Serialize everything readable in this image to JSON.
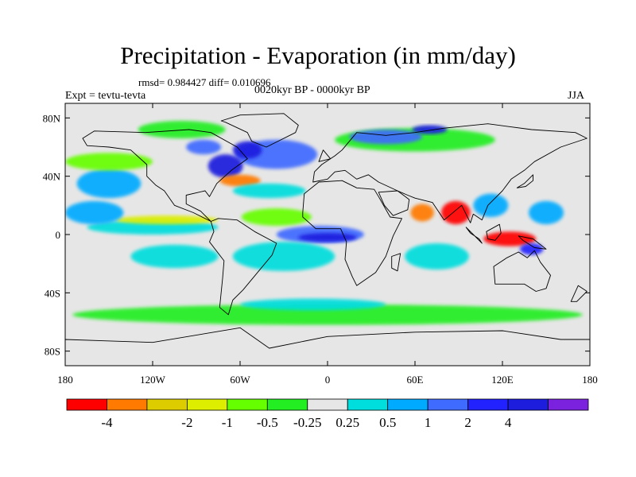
{
  "figure": {
    "title": "Precipitation - Evaporation (in mm/day)",
    "stats": "rmsd= 0.984427 diff= 0.010696",
    "experiment": "Expt = tevtu-tevta",
    "period": "0020kyr BP - 0000kyr BP",
    "season": "JJA"
  },
  "map": {
    "projection": "cylindrical-equidistant",
    "lon_range": [
      -180,
      180
    ],
    "lat_range": [
      -90,
      90
    ],
    "lon_ticks": [
      {
        "lon": -180,
        "label": "180"
      },
      {
        "lon": -120,
        "label": "120W"
      },
      {
        "lon": -60,
        "label": "60W"
      },
      {
        "lon": 0,
        "label": "0"
      },
      {
        "lon": 60,
        "label": "60E"
      },
      {
        "lon": 120,
        "label": "120E"
      },
      {
        "lon": 180,
        "label": "180"
      }
    ],
    "lat_ticks": [
      {
        "lat": 80,
        "label": "80N"
      },
      {
        "lat": 40,
        "label": "40N"
      },
      {
        "lat": 0,
        "label": "0"
      },
      {
        "lat": -40,
        "label": "40S"
      },
      {
        "lat": -80,
        "label": "80S"
      }
    ],
    "background_class": "-0.25 to 0.25",
    "features": [
      {
        "name": "north-atlantic-moistening",
        "lon": -35,
        "lat": 55,
        "rx": 28,
        "ry": 10,
        "color": "#3f6bff"
      },
      {
        "name": "nw-atlantic-wet",
        "lon": -70,
        "lat": 47,
        "rx": 12,
        "ry": 8,
        "color": "#1d1dde"
      },
      {
        "name": "gulf-stream-drying",
        "lon": -60,
        "lat": 37,
        "rx": 14,
        "ry": 4,
        "color": "#ff7a00"
      },
      {
        "name": "subtropical-atlantic-wet",
        "lon": -40,
        "lat": 30,
        "rx": 25,
        "ry": 5,
        "color": "#00dddd"
      },
      {
        "name": "tropical-atlantic-drying",
        "lon": -35,
        "lat": 12,
        "rx": 24,
        "ry": 6,
        "color": "#66ff00"
      },
      {
        "name": "eq-atlantic-wet",
        "lon": -5,
        "lat": 0,
        "rx": 30,
        "ry": 6,
        "color": "#3f6bff"
      },
      {
        "name": "eq-atlantic-core",
        "lon": 0,
        "lat": -2,
        "rx": 20,
        "ry": 3,
        "color": "#1d1dde"
      },
      {
        "name": "south-atlantic-wet",
        "lon": -30,
        "lat": -15,
        "rx": 35,
        "ry": 10,
        "color": "#00dddd"
      },
      {
        "name": "eq-pacific-wet",
        "lon": -120,
        "lat": 5,
        "rx": 45,
        "ry": 5,
        "color": "#00dddd"
      },
      {
        "name": "itcz-pacific-dry",
        "lon": -110,
        "lat": 10,
        "rx": 35,
        "ry": 3,
        "color": "#ddee00"
      },
      {
        "name": "central-pacific-wet",
        "lon": -160,
        "lat": 15,
        "rx": 20,
        "ry": 8,
        "color": "#00aaff"
      },
      {
        "name": "north-pacific-wet",
        "lon": -150,
        "lat": 35,
        "rx": 22,
        "ry": 10,
        "color": "#00aaff"
      },
      {
        "name": "north-pacific-band",
        "lon": -150,
        "lat": 50,
        "rx": 30,
        "ry": 6,
        "color": "#66ff00"
      },
      {
        "name": "se-pacific-wet",
        "lon": -105,
        "lat": -15,
        "rx": 30,
        "ry": 8,
        "color": "#00dddd"
      },
      {
        "name": "southern-ocean-band",
        "lon": 0,
        "lat": -55,
        "rx": 175,
        "ry": 7,
        "color": "#22ee22"
      },
      {
        "name": "southern-ocean-wet",
        "lon": -10,
        "lat": -48,
        "rx": 50,
        "ry": 4,
        "color": "#00dddd"
      },
      {
        "name": "indian-ocean-wet",
        "lon": 75,
        "lat": -15,
        "rx": 22,
        "ry": 9,
        "color": "#00dddd"
      },
      {
        "name": "arabian-sea-dry",
        "lon": 65,
        "lat": 15,
        "rx": 8,
        "ry": 6,
        "color": "#ff7a00"
      },
      {
        "name": "india-bay-drying",
        "lon": 88,
        "lat": 15,
        "rx": 10,
        "ry": 8,
        "color": "#ff0000"
      },
      {
        "name": "south-china-wet",
        "lon": 112,
        "lat": 20,
        "rx": 12,
        "ry": 8,
        "color": "#00aaff"
      },
      {
        "name": "maritime-continent-dry",
        "lon": 125,
        "lat": -3,
        "rx": 18,
        "ry": 5,
        "color": "#ff0000"
      },
      {
        "name": "maritime-continent-wet",
        "lon": 140,
        "lat": -10,
        "rx": 8,
        "ry": 4,
        "color": "#2222ff"
      },
      {
        "name": "western-pacific-wet",
        "lon": 150,
        "lat": 15,
        "rx": 12,
        "ry": 8,
        "color": "#00aaff"
      },
      {
        "name": "north-eurasia-green",
        "lon": 60,
        "lat": 65,
        "rx": 55,
        "ry": 8,
        "color": "#22ee22"
      },
      {
        "name": "siberia-wet",
        "lon": 40,
        "lat": 67,
        "rx": 25,
        "ry": 5,
        "color": "#3f6bff"
      },
      {
        "name": "kara-sea-wet",
        "lon": 70,
        "lat": 72,
        "rx": 12,
        "ry": 3,
        "color": "#1d1dde"
      },
      {
        "name": "arctic-canada-green",
        "lon": -100,
        "lat": 72,
        "rx": 30,
        "ry": 6,
        "color": "#22ee22"
      },
      {
        "name": "hudson-wet",
        "lon": -85,
        "lat": 60,
        "rx": 12,
        "ry": 5,
        "color": "#3f6bff"
      },
      {
        "name": "labrador-wet",
        "lon": -55,
        "lat": 58,
        "rx": 10,
        "ry": 6,
        "color": "#1d1dde"
      }
    ],
    "continents": [
      {
        "name": "north-america",
        "pts": [
          [
            -168,
            66
          ],
          [
            -160,
            71
          ],
          [
            -125,
            70
          ],
          [
            -95,
            72
          ],
          [
            -80,
            70
          ],
          [
            -62,
            60
          ],
          [
            -55,
            52
          ],
          [
            -66,
            44
          ],
          [
            -76,
            35
          ],
          [
            -81,
            26
          ],
          [
            -84,
            30
          ],
          [
            -97,
            27
          ],
          [
            -97,
            21
          ],
          [
            -87,
            16
          ],
          [
            -80,
            9
          ],
          [
            -92,
            15
          ],
          [
            -105,
            20
          ],
          [
            -112,
            30
          ],
          [
            -118,
            34
          ],
          [
            -124,
            40
          ],
          [
            -124,
            48
          ],
          [
            -135,
            58
          ],
          [
            -150,
            60
          ],
          [
            -165,
            61
          ]
        ]
      },
      {
        "name": "greenland",
        "pts": [
          [
            -73,
            78
          ],
          [
            -60,
            82
          ],
          [
            -30,
            83
          ],
          [
            -20,
            75
          ],
          [
            -22,
            70
          ],
          [
            -42,
            60
          ],
          [
            -52,
            64
          ],
          [
            -55,
            70
          ],
          [
            -70,
            77
          ]
        ]
      },
      {
        "name": "south-america",
        "pts": [
          [
            -80,
            9
          ],
          [
            -75,
            11
          ],
          [
            -62,
            10
          ],
          [
            -50,
            2
          ],
          [
            -35,
            -6
          ],
          [
            -38,
            -14
          ],
          [
            -48,
            -26
          ],
          [
            -58,
            -38
          ],
          [
            -65,
            -45
          ],
          [
            -68,
            -55
          ],
          [
            -74,
            -50
          ],
          [
            -72,
            -30
          ],
          [
            -71,
            -18
          ],
          [
            -81,
            -5
          ],
          [
            -78,
            2
          ]
        ]
      },
      {
        "name": "europe-asia",
        "pts": [
          [
            -10,
            36
          ],
          [
            -9,
            43
          ],
          [
            -4,
            48
          ],
          [
            5,
            54
          ],
          [
            10,
            58
          ],
          [
            20,
            70
          ],
          [
            40,
            68
          ],
          [
            60,
            70
          ],
          [
            80,
            73
          ],
          [
            110,
            76
          ],
          [
            140,
            72
          ],
          [
            170,
            70
          ],
          [
            178,
            66
          ],
          [
            160,
            60
          ],
          [
            142,
            50
          ],
          [
            135,
            44
          ],
          [
            126,
            38
          ],
          [
            120,
            30
          ],
          [
            110,
            20
          ],
          [
            106,
            10
          ],
          [
            100,
            14
          ],
          [
            98,
            8
          ],
          [
            92,
            20
          ],
          [
            80,
            10
          ],
          [
            72,
            22
          ],
          [
            60,
            25
          ],
          [
            55,
            27
          ],
          [
            48,
            30
          ],
          [
            35,
            36
          ],
          [
            28,
            41
          ],
          [
            20,
            38
          ],
          [
            12,
            44
          ],
          [
            5,
            43
          ],
          [
            0,
            38
          ]
        ]
      },
      {
        "name": "africa",
        "pts": [
          [
            -17,
            15
          ],
          [
            -16,
            28
          ],
          [
            -6,
            36
          ],
          [
            10,
            37
          ],
          [
            20,
            32
          ],
          [
            32,
            31
          ],
          [
            35,
            26
          ],
          [
            43,
            12
          ],
          [
            51,
            11
          ],
          [
            45,
            -1
          ],
          [
            40,
            -15
          ],
          [
            33,
            -26
          ],
          [
            20,
            -35
          ],
          [
            17,
            -29
          ],
          [
            12,
            -17
          ],
          [
            13,
            -5
          ],
          [
            9,
            4
          ],
          [
            -8,
            4
          ],
          [
            -17,
            12
          ]
        ]
      },
      {
        "name": "arabia",
        "pts": [
          [
            35,
            29
          ],
          [
            48,
            30
          ],
          [
            56,
            24
          ],
          [
            55,
            17
          ],
          [
            45,
            13
          ],
          [
            39,
            20
          ]
        ]
      },
      {
        "name": "australia",
        "pts": [
          [
            114,
            -22
          ],
          [
            123,
            -16
          ],
          [
            131,
            -12
          ],
          [
            137,
            -16
          ],
          [
            142,
            -11
          ],
          [
            146,
            -19
          ],
          [
            153,
            -28
          ],
          [
            150,
            -37
          ],
          [
            143,
            -39
          ],
          [
            135,
            -34
          ],
          [
            124,
            -34
          ],
          [
            115,
            -34
          ]
        ]
      },
      {
        "name": "antarctica",
        "pts": [
          [
            -180,
            -72
          ],
          [
            -120,
            -74
          ],
          [
            -60,
            -64
          ],
          [
            -40,
            -78
          ],
          [
            0,
            -70
          ],
          [
            60,
            -67
          ],
          [
            120,
            -66
          ],
          [
            160,
            -72
          ],
          [
            180,
            -72
          ],
          [
            180,
            -90
          ],
          [
            -180,
            -90
          ]
        ]
      },
      {
        "name": "borneo",
        "pts": [
          [
            109,
            2
          ],
          [
            118,
            7
          ],
          [
            119,
            1
          ],
          [
            115,
            -4
          ],
          [
            110,
            -3
          ]
        ]
      },
      {
        "name": "sumatra",
        "pts": [
          [
            95,
            5
          ],
          [
            106,
            -6
          ],
          [
            104,
            -3
          ],
          [
            98,
            1
          ]
        ]
      },
      {
        "name": "new-guinea",
        "pts": [
          [
            131,
            -1
          ],
          [
            141,
            -3
          ],
          [
            150,
            -10
          ],
          [
            142,
            -9
          ],
          [
            134,
            -4
          ]
        ]
      },
      {
        "name": "japan",
        "pts": [
          [
            130,
            32
          ],
          [
            135,
            35
          ],
          [
            141,
            41
          ],
          [
            141,
            37
          ],
          [
            136,
            33
          ]
        ]
      },
      {
        "name": "british-isles",
        "pts": [
          [
            -6,
            50
          ],
          [
            -3,
            58
          ],
          [
            2,
            52
          ]
        ]
      },
      {
        "name": "madagascar",
        "pts": [
          [
            44,
            -15
          ],
          [
            50,
            -13
          ],
          [
            48,
            -25
          ],
          [
            44,
            -23
          ]
        ]
      },
      {
        "name": "new-zealand",
        "pts": [
          [
            172,
            -35
          ],
          [
            178,
            -39
          ],
          [
            171,
            -46
          ],
          [
            167,
            -46
          ]
        ]
      }
    ]
  },
  "colorbar": {
    "colors": [
      "#ff0000",
      "#ff7a00",
      "#ddcc00",
      "#ddee00",
      "#66ff00",
      "#22ee22",
      "#e6e6e6",
      "#00dddd",
      "#00aaff",
      "#3f6bff",
      "#2222ff",
      "#1d1dde",
      "#7a22dd"
    ],
    "labels": [
      "-4",
      "-2",
      "-1",
      "-0.5",
      "-0.25",
      "0.25",
      "0.5",
      "1",
      "2",
      "4"
    ],
    "label_boundaries": [
      1,
      3,
      4,
      5,
      6,
      7,
      8,
      9,
      10,
      11
    ]
  }
}
